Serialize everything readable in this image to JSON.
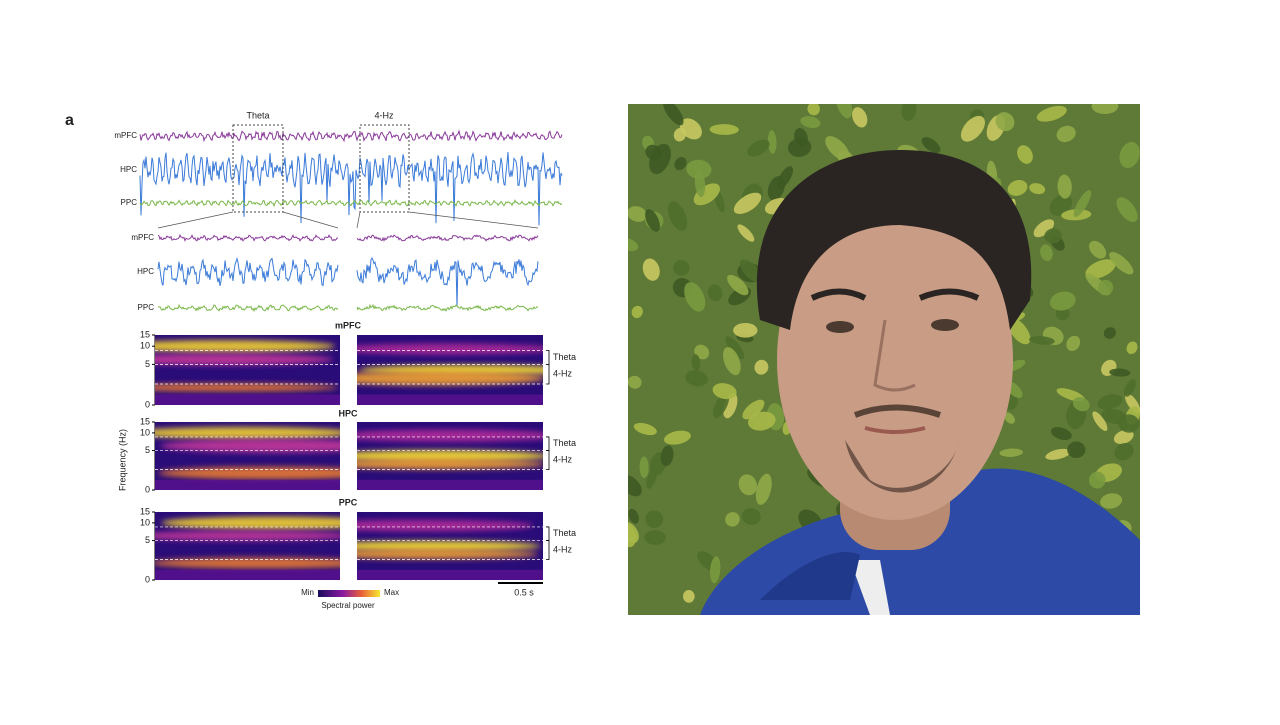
{
  "figure": {
    "panel_label": "a",
    "top_traces": {
      "window_labels": [
        "Theta",
        "4-Hz"
      ],
      "channels": [
        "mPFC",
        "HPC",
        "PPC"
      ]
    },
    "zoom_traces": {
      "channels": [
        "mPFC",
        "HPC",
        "PPC"
      ]
    },
    "spectrograms": [
      {
        "title": "mPFC",
        "yticks": [
          "15",
          "10",
          "5",
          "0"
        ],
        "bands": [
          "Theta",
          "4-Hz"
        ]
      },
      {
        "title": "HPC",
        "yticks": [
          "15",
          "10",
          "5",
          "0"
        ],
        "bands": [
          "Theta",
          "4-Hz"
        ]
      },
      {
        "title": "PPC",
        "yticks": [
          "15",
          "10",
          "5",
          "0"
        ],
        "bands": [
          "Theta",
          "4-Hz"
        ]
      }
    ],
    "y_axis_label": "Frequency (Hz)",
    "colorbar": {
      "min_label": "Min",
      "max_label": "Max",
      "title": "Spectral power"
    },
    "scale_bar": "0.5 s"
  }
}
